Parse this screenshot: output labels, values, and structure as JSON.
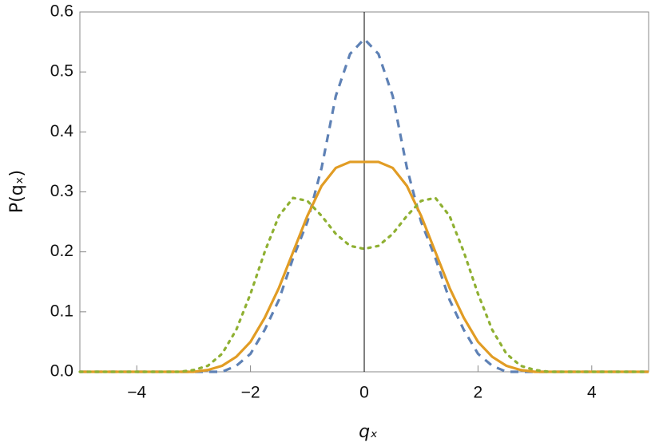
{
  "chart_data": {
    "type": "line",
    "xlabel": "qₓ",
    "ylabel": "P(qₓ)",
    "x": [
      -5,
      -4.75,
      -4.5,
      -4.25,
      -4,
      -3.75,
      -3.5,
      -3.25,
      -3,
      -2.75,
      -2.5,
      -2.25,
      -2,
      -1.75,
      -1.5,
      -1.25,
      -1,
      -0.75,
      -0.5,
      -0.25,
      0,
      0.25,
      0.5,
      0.75,
      1,
      1.25,
      1.5,
      1.75,
      2,
      2.25,
      2.5,
      2.75,
      3,
      3.25,
      3.5,
      3.75,
      4,
      4.25,
      4.5,
      4.75,
      5
    ],
    "series": [
      {
        "color": "#5e81b5",
        "dash": "dashed",
        "values": [
          0,
          0,
          0,
          0,
          0,
          0,
          0,
          0,
          0,
          0,
          0,
          0.01,
          0.03,
          0.07,
          0.12,
          0.19,
          0.25,
          0.34,
          0.46,
          0.53,
          0.555,
          0.53,
          0.46,
          0.34,
          0.25,
          0.19,
          0.12,
          0.07,
          0.03,
          0.01,
          0,
          0,
          0,
          0,
          0,
          0,
          0,
          0,
          0,
          0,
          0
        ]
      },
      {
        "color": "#e19c24",
        "dash": "solid",
        "values": [
          0,
          0,
          0,
          0,
          0,
          0,
          0,
          0,
          0,
          0.003,
          0.01,
          0.025,
          0.05,
          0.09,
          0.14,
          0.2,
          0.26,
          0.31,
          0.34,
          0.35,
          0.35,
          0.35,
          0.34,
          0.31,
          0.26,
          0.2,
          0.14,
          0.09,
          0.05,
          0.025,
          0.01,
          0.003,
          0,
          0,
          0,
          0,
          0,
          0,
          0,
          0,
          0
        ]
      },
      {
        "color": "#8fb032",
        "dash": "dotted",
        "values": [
          0,
          0,
          0,
          0,
          0,
          0,
          0,
          0,
          0.003,
          0.01,
          0.03,
          0.07,
          0.13,
          0.2,
          0.26,
          0.29,
          0.285,
          0.26,
          0.23,
          0.21,
          0.205,
          0.21,
          0.23,
          0.26,
          0.285,
          0.29,
          0.26,
          0.2,
          0.13,
          0.07,
          0.03,
          0.01,
          0.003,
          0,
          0,
          0,
          0,
          0,
          0,
          0,
          0
        ]
      }
    ],
    "xlim": [
      -5,
      5
    ],
    "ylim": [
      0,
      0.6
    ],
    "xticks": [
      {
        "value": -4,
        "label": "−4"
      },
      {
        "value": -2,
        "label": "−2"
      },
      {
        "value": 0,
        "label": "0"
      },
      2,
      4
    ],
    "yticks": [
      {
        "value": 0,
        "label": "0.0"
      },
      0.1,
      0.2,
      0.3,
      0.4,
      0.5,
      0.6
    ]
  }
}
